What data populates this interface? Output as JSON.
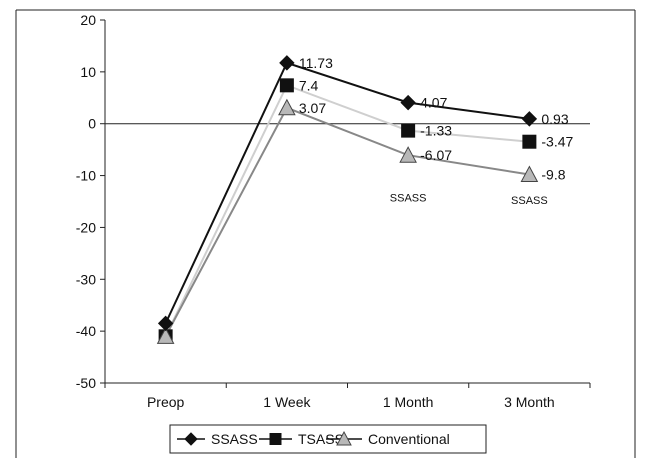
{
  "chart_data": {
    "type": "line",
    "categories": [
      "Preop",
      "1 Week",
      "1 Month",
      "3 Month"
    ],
    "ylim": [
      -50,
      20
    ],
    "yticks": [
      20,
      10,
      0,
      -10,
      -20,
      -30,
      -40,
      -50
    ],
    "grid": false,
    "legend_position": "bottom",
    "series": [
      {
        "name": "SSASS",
        "marker": "diamond",
        "color": "#111111",
        "values": [
          -38.5,
          11.73,
          4.07,
          0.93
        ],
        "labels": [
          "",
          "11.73",
          "4.07",
          "0.93"
        ]
      },
      {
        "name": "TSASS",
        "marker": "square",
        "color": "#cfcfcf",
        "values": [
          -41,
          7.4,
          -1.33,
          -3.47
        ],
        "labels": [
          "",
          "7.4",
          "-1.33",
          "-3.47"
        ]
      },
      {
        "name": "Conventional",
        "marker": "triangle",
        "color": "#888888",
        "values": [
          -41,
          3.07,
          -6.07,
          -9.8
        ],
        "labels": [
          "",
          "3.07",
          "-6.07",
          "-9.8"
        ]
      }
    ],
    "annotations": [
      {
        "text": "SSASS",
        "category": "1 Month",
        "y": -15
      },
      {
        "text": "SSASS",
        "category": "3 Month",
        "y": -15.5
      }
    ]
  }
}
